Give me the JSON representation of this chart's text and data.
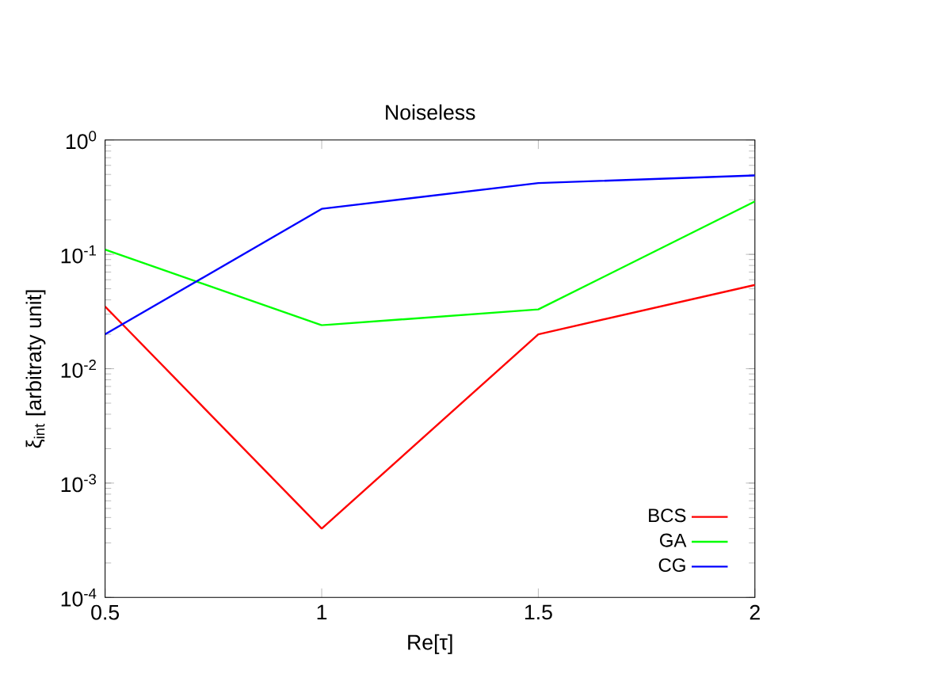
{
  "chart_data": {
    "type": "line",
    "title": "Noiseless",
    "xlabel": "Re[τ]",
    "ylabel": "ξ$_{int}$ [arbitraty unit]",
    "x": [
      0.5,
      1,
      1.5,
      2
    ],
    "series": [
      {
        "name": "BCS",
        "color": "#ff0000",
        "values": [
          0.035,
          0.0004,
          0.02,
          0.054
        ]
      },
      {
        "name": "GA",
        "color": "#00ff00",
        "values": [
          0.11,
          0.024,
          0.033,
          0.29
        ]
      },
      {
        "name": "CG",
        "color": "#0000ff",
        "values": [
          0.02,
          0.25,
          0.42,
          0.49
        ]
      }
    ],
    "xlim": [
      0.5,
      2
    ],
    "xticks": [
      0.5,
      1,
      1.5,
      2
    ],
    "ylim": [
      0.0001,
      1
    ],
    "yticks": [
      {
        "value": 0.0001,
        "label": "10$^{-4}$"
      },
      {
        "value": 0.001,
        "label": "10$^{-3}$"
      },
      {
        "value": 0.01,
        "label": "10$^{-2}$"
      },
      {
        "value": 0.1,
        "label": "10$^{-1}$"
      },
      {
        "value": 1,
        "label": "10$^{0}$"
      }
    ],
    "log": "y",
    "grid": false,
    "legend": "bottom right",
    "marker": "none",
    "line_style": "solid"
  }
}
